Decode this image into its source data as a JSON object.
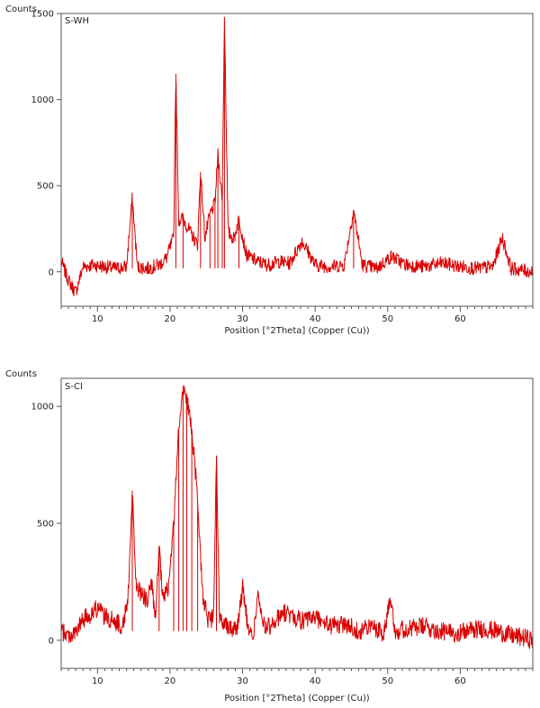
{
  "chart_data": [
    {
      "type": "line",
      "title": "S-WH",
      "ylabel": "Counts",
      "xlabel": "Position [°2Theta] (Copper (Cu))",
      "xlim": [
        5,
        70
      ],
      "ylim": [
        -200,
        1500
      ],
      "x_ticks": [
        10,
        20,
        30,
        40,
        50,
        60
      ],
      "y_ticks": [
        0,
        500,
        1000,
        1500
      ],
      "grid": false,
      "legend": "none",
      "color": "#d90000",
      "baseline": 20,
      "noise": 40,
      "series": [
        {
          "x": [
            5.0,
            6.0,
            7.0,
            8.0,
            9.5,
            11.0,
            12.5,
            14.0,
            14.8,
            15.5,
            17.0,
            18.5,
            19.5,
            20.5,
            20.8,
            21.2,
            21.8,
            22.5,
            23.2,
            23.8,
            24.2,
            24.8,
            25.5,
            26.2,
            26.6,
            27.2,
            27.5,
            28.0,
            28.8,
            29.5,
            30.5,
            32.0,
            33.5,
            35.0,
            36.5,
            38.2,
            40.0,
            42.0,
            44.0,
            45.3,
            46.5,
            48.5,
            50.5,
            52.5,
            55.0,
            57.5,
            60.0,
            62.5,
            64.5,
            65.8,
            67.0,
            68.5,
            70.0
          ],
          "values": [
            60,
            -50,
            -120,
            30,
            40,
            30,
            20,
            30,
            430,
            30,
            20,
            40,
            80,
            200,
            1150,
            300,
            310,
            250,
            200,
            160,
            580,
            200,
            330,
            400,
            680,
            420,
            1480,
            230,
            190,
            310,
            100,
            60,
            40,
            60,
            50,
            180,
            40,
            30,
            40,
            360,
            40,
            20,
            90,
            40,
            30,
            50,
            30,
            20,
            30,
            200,
            20,
            10,
            0
          ]
        }
      ]
    },
    {
      "type": "line",
      "title": "S-CI",
      "ylabel": "Counts",
      "xlabel": "Position [°2Theta] (Copper (Cu))",
      "xlim": [
        5,
        70
      ],
      "ylim": [
        -120,
        1120
      ],
      "x_ticks": [
        10,
        20,
        30,
        40,
        50,
        60
      ],
      "y_ticks": [
        0,
        500,
        1000
      ],
      "grid": false,
      "legend": "none",
      "color": "#d90000",
      "baseline": 40,
      "noise": 40,
      "series": [
        {
          "x": [
            5.0,
            6.0,
            7.0,
            8.0,
            9.0,
            10.0,
            11.0,
            12.5,
            13.5,
            14.2,
            14.8,
            15.3,
            16.0,
            16.8,
            17.5,
            18.0,
            18.5,
            19.0,
            19.8,
            20.5,
            21.2,
            21.8,
            22.3,
            23.0,
            23.8,
            24.5,
            25.3,
            26.0,
            26.4,
            26.8,
            27.5,
            28.5,
            29.3,
            30.0,
            30.8,
            31.5,
            32.1,
            32.8,
            34.0,
            35.5,
            37.0,
            38.5,
            40.0,
            42.0,
            44.0,
            46.0,
            48.0,
            49.5,
            50.4,
            51.0,
            53.0,
            55.0,
            57.0,
            59.0,
            61.0,
            63.0,
            65.0,
            67.0,
            69.0,
            70.0
          ],
          "values": [
            40,
            20,
            30,
            90,
            110,
            140,
            100,
            80,
            60,
            180,
            640,
            240,
            200,
            170,
            240,
            80,
            400,
            170,
            230,
            500,
            900,
            1090,
            1030,
            900,
            600,
            200,
            80,
            100,
            790,
            100,
            80,
            50,
            60,
            230,
            40,
            20,
            200,
            60,
            60,
            120,
            100,
            80,
            100,
            60,
            70,
            40,
            60,
            30,
            200,
            40,
            50,
            60,
            40,
            30,
            40,
            50,
            40,
            20,
            10,
            0
          ]
        }
      ]
    }
  ]
}
